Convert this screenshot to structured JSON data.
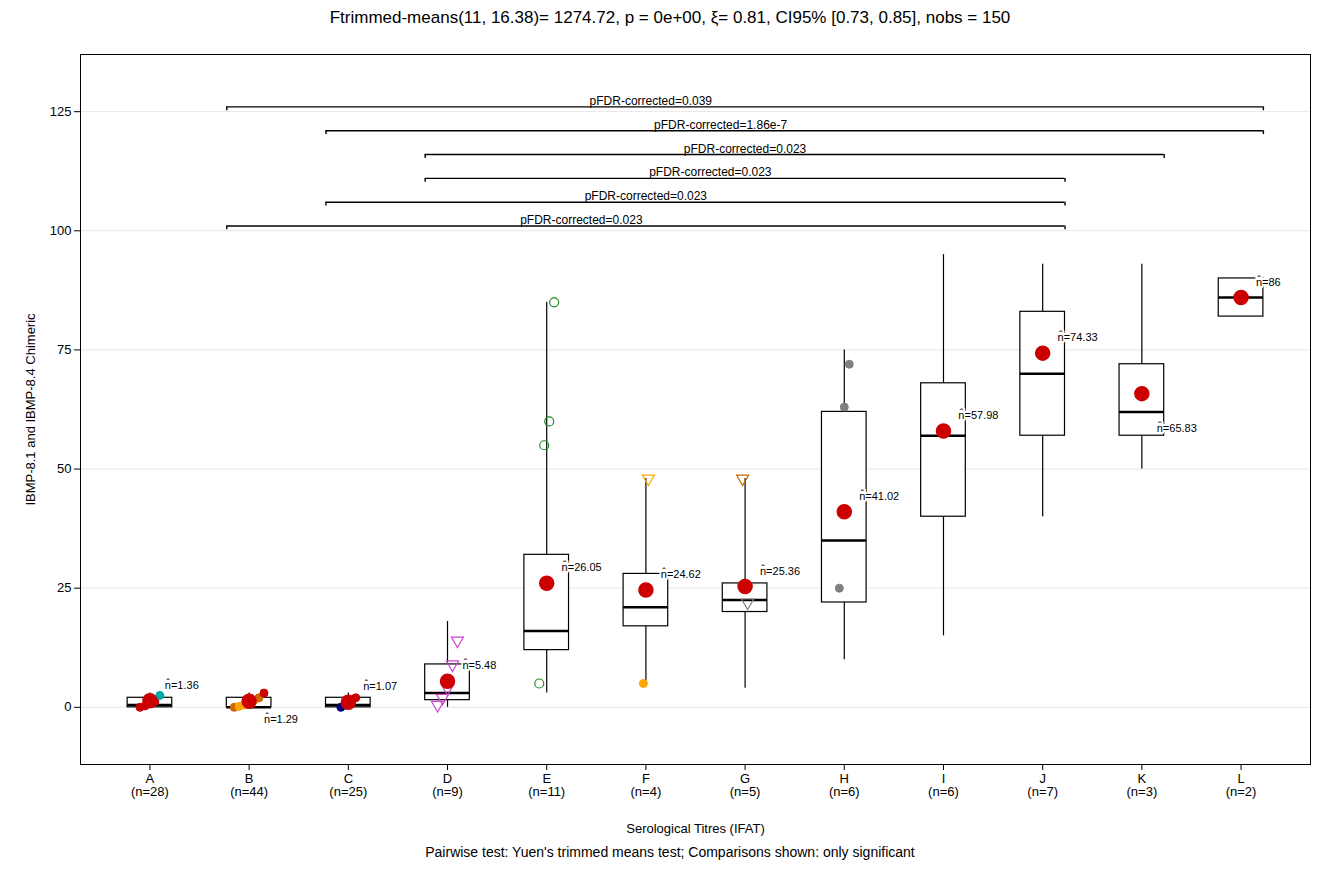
{
  "chart_data": {
    "type": "box",
    "title": "Ftrimmed-means(11, 16.38)= 1274.72, p = 0e+00, ξ= 0.81, CI95% [0.73, 0.85], nobs = 150",
    "caption": "Pairwise test: Yuen's trimmed means test; Comparisons shown: only significant",
    "xlabel": "Serological Titres (IFAT)",
    "ylabel": "IBMP-8.1 and IBMP-8.4 Chimeric",
    "categories": [
      "A",
      "B",
      "C",
      "D",
      "E",
      "F",
      "G",
      "H",
      "I",
      "J",
      "K",
      "L"
    ],
    "category_counts": [
      "(n=28)",
      "(n=44)",
      "(n=25)",
      "(n=9)",
      "(n=11)",
      "(n=4)",
      "(n=5)",
      "(n=6)",
      "(n=6)",
      "(n=7)",
      "(n=3)",
      "(n=2)"
    ],
    "q1": [
      0.0,
      0.0,
      0.0,
      1.5,
      12.0,
      17.0,
      20.0,
      22.0,
      40.0,
      57.0,
      57.0,
      82.0
    ],
    "median": [
      0.5,
      0.0,
      0.5,
      3.0,
      16.0,
      21.0,
      22.5,
      35.0,
      57.0,
      70.0,
      62.0,
      86.0
    ],
    "q3": [
      2.0,
      2.0,
      2.0,
      9.0,
      32.0,
      28.0,
      26.0,
      62.0,
      68.0,
      83.0,
      72.0,
      90.0
    ],
    "whisker_low": [
      0.0,
      0.0,
      0.0,
      0.0,
      3.0,
      5.0,
      4.0,
      10.0,
      15.0,
      40.0,
      50.0,
      82.0
    ],
    "whisker_high": [
      3.0,
      3.0,
      3.0,
      18.0,
      85.0,
      48.0,
      48.0,
      75.0,
      95.0,
      93.0,
      93.0,
      90.0
    ],
    "means": {
      "color": "#cc0000",
      "values": [
        1.36,
        1.29,
        1.07,
        5.48,
        26.05,
        24.62,
        25.36,
        41.02,
        57.98,
        74.33,
        65.83,
        86.0
      ],
      "value_labels": [
        "n̂=1.36",
        "n̂=1.29",
        "n̂=1.07",
        "n̂=5.48",
        "n̂=26.05",
        "n̂=24.62",
        "n̂=25.36",
        "n̂=41.02",
        "n̂=57.98",
        "n̂=74.33",
        "n̂=65.83",
        "n̂=86"
      ]
    },
    "points": [
      [
        {
          "y": 0.0,
          "color": "#cc0000",
          "marker": "circle"
        },
        {
          "y": 0.3,
          "color": "#cc0000",
          "marker": "circle"
        },
        {
          "y": 0.8,
          "color": "#cc0000",
          "marker": "circle"
        },
        {
          "y": 1.2,
          "color": "#cc0000",
          "marker": "circle"
        },
        {
          "y": 2.5,
          "color": "#00aaaa",
          "marker": "circle"
        }
      ],
      [
        {
          "y": 0.0,
          "color": "#cc6600",
          "marker": "circle"
        },
        {
          "y": 0.2,
          "color": "#ffa500",
          "marker": "circle"
        },
        {
          "y": 0.5,
          "color": "#ffa500",
          "marker": "circle"
        },
        {
          "y": 1.0,
          "color": "#cc6600",
          "marker": "circle"
        },
        {
          "y": 1.5,
          "color": "#ffa500",
          "marker": "circle"
        },
        {
          "y": 2.0,
          "color": "#cc6600",
          "marker": "circle"
        },
        {
          "y": 3.0,
          "color": "#cc0000",
          "marker": "circle"
        }
      ],
      [
        {
          "y": 0.0,
          "color": "#000080",
          "marker": "circle"
        },
        {
          "y": 0.5,
          "color": "#000080",
          "marker": "circle"
        },
        {
          "y": 1.0,
          "color": "#000080",
          "marker": "circle"
        },
        {
          "y": 2.0,
          "color": "#cc0000",
          "marker": "circle"
        }
      ],
      [
        {
          "y": 0.5,
          "color": "#cc44cc",
          "marker": "triangle-down-open"
        },
        {
          "y": 2.0,
          "color": "#cc44cc",
          "marker": "triangle-down-open"
        },
        {
          "y": 4.0,
          "color": "#cc44cc",
          "marker": "triangle-down-open"
        },
        {
          "y": 9.0,
          "color": "#cc44cc",
          "marker": "triangle-down-open"
        },
        {
          "y": 14.0,
          "color": "#cc44cc",
          "marker": "triangle-down-open"
        }
      ],
      [
        {
          "y": 5.0,
          "color": "#228b22",
          "marker": "circle-open"
        },
        {
          "y": 55.0,
          "color": "#228b22",
          "marker": "circle-open"
        },
        {
          "y": 60.0,
          "color": "#228b22",
          "marker": "circle-open"
        },
        {
          "y": 85.0,
          "color": "#228b22",
          "marker": "circle-open"
        }
      ],
      [
        {
          "y": 5.0,
          "color": "#ffa500",
          "marker": "circle"
        },
        {
          "y": 48.0,
          "color": "#ffa500",
          "marker": "triangle-down-open"
        }
      ],
      [
        {
          "y": 48.0,
          "color": "#cc6600",
          "marker": "triangle-down-open"
        },
        {
          "y": 22.0,
          "color": "#808080",
          "marker": "triangle-down-open"
        }
      ],
      [
        {
          "y": 25.0,
          "color": "#808080",
          "marker": "circle"
        },
        {
          "y": 63.0,
          "color": "#808080",
          "marker": "circle"
        },
        {
          "y": 72.0,
          "color": "#808080",
          "marker": "circle"
        }
      ],
      [],
      [],
      [],
      []
    ],
    "significance_brackets": [
      {
        "from": "B",
        "to": "L",
        "y": 126,
        "label": "pFDR-corrected=0.039"
      },
      {
        "from": "C",
        "to": "L",
        "y": 121,
        "label": "pFDR-corrected=1.86e-7"
      },
      {
        "from": "D",
        "to": "K",
        "y": 116,
        "label": "pFDR-corrected=0.023"
      },
      {
        "from": "D",
        "to": "J",
        "y": 111,
        "label": "pFDR-corrected=0.023"
      },
      {
        "from": "C",
        "to": "J",
        "y": 106,
        "label": "pFDR-corrected=0.023"
      },
      {
        "from": "B",
        "to": "J",
        "y": 101,
        "label": "pFDR-corrected=0.023"
      }
    ],
    "ylim": [
      -12,
      137
    ],
    "yticks": [
      0,
      25,
      50,
      75,
      100,
      125
    ],
    "grid": true
  }
}
